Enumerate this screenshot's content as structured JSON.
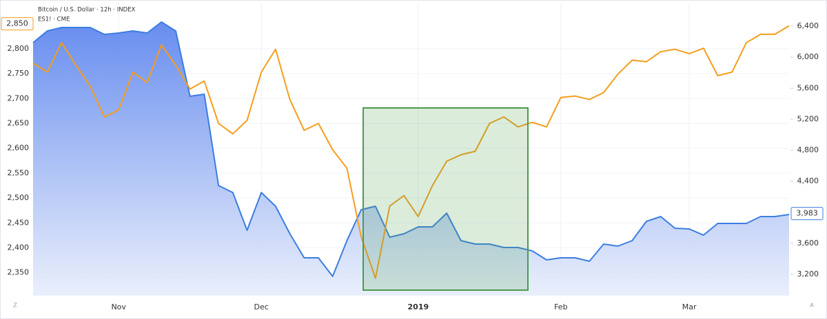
{
  "chart_data": {
    "type": "line",
    "categories": [
      null,
      null,
      null,
      null,
      null,
      null,
      "Nov",
      null,
      null,
      null,
      null,
      null,
      null,
      null,
      null,
      null,
      "Dec",
      null,
      null,
      null,
      null,
      null,
      null,
      null,
      null,
      null,
      null,
      "2019",
      null,
      null,
      null,
      null,
      null,
      null,
      null,
      null,
      null,
      "Feb",
      null,
      null,
      null,
      null,
      null,
      null,
      null,
      null,
      "Mar",
      null,
      null,
      null,
      null,
      null,
      null,
      null
    ],
    "series": [
      {
        "name": "Bitcoin / U.S. Dollar · 12h · INDEX",
        "color": "#3b7de0",
        "axis": "y2",
        "area": true,
        "last_value": {
          "value": 3983,
          "label": "3,983"
        },
        "values": [
          6188,
          6338,
          6383,
          6383,
          6383,
          6294,
          6312,
          6338,
          6312,
          6454,
          6338,
          5496,
          5523,
          4344,
          4255,
          3767,
          4255,
          4078,
          3723,
          3413,
          3413,
          3173,
          3634,
          4033,
          4078,
          3679,
          3723,
          3812,
          3812,
          3989,
          3634,
          3590,
          3590,
          3546,
          3546,
          3501,
          3386,
          3413,
          3413,
          3368,
          3590,
          3563,
          3634,
          3883,
          3945,
          3794,
          3785,
          3705,
          3856,
          3856,
          3856,
          3945,
          3945,
          3971
        ]
      },
      {
        "name": "ES1! · CME",
        "color": "#f59d1c",
        "last_value": {
          "value": 2850,
          "label": "2,850"
        },
        "values": [
          2771,
          2753,
          2812,
          2767,
          2725,
          2663,
          2677,
          2753,
          2732,
          2808,
          2767,
          2719,
          2735,
          2650,
          2629,
          2656,
          2753,
          2799,
          2698,
          2636,
          2650,
          2597,
          2560,
          2422,
          2339,
          2484,
          2505,
          2463,
          2525,
          2574,
          2587,
          2594,
          2650,
          2663,
          2643,
          2652,
          2643,
          2702,
          2705,
          2698,
          2712,
          2749,
          2777,
          2774,
          2794,
          2799,
          2790,
          2801,
          2746,
          2753,
          2812,
          2829,
          2829,
          2846
        ]
      }
    ],
    "ylim": [
      2304,
      2891
    ],
    "yticks": [
      {
        "value": 2350,
        "label": "2,350"
      },
      {
        "value": 2400,
        "label": "2,400"
      },
      {
        "value": 2450,
        "label": "2,450"
      },
      {
        "value": 2500,
        "label": "2,500"
      },
      {
        "value": 2550,
        "label": "2,550"
      },
      {
        "value": 2600,
        "label": "2,600"
      },
      {
        "value": 2650,
        "label": "2,650"
      },
      {
        "value": 2700,
        "label": "2,700"
      },
      {
        "value": 2750,
        "label": "2,750"
      },
      {
        "value": 2800,
        "label": "2,800"
      }
    ],
    "y2lim": [
      2925,
      6693
    ],
    "y2ticks": [
      {
        "value": 3200,
        "label": "3,200"
      },
      {
        "value": 3600,
        "label": "3,600"
      },
      {
        "value": 4400,
        "label": "4,400"
      },
      {
        "value": 4800,
        "label": "4,800"
      },
      {
        "value": 5200,
        "label": "5,200"
      },
      {
        "value": 5600,
        "label": "5,600"
      },
      {
        "value": 6000,
        "label": "6,000"
      },
      {
        "value": 6400,
        "label": "6,400"
      }
    ],
    "grid": true,
    "buttons": [
      "Z",
      "A"
    ]
  }
}
